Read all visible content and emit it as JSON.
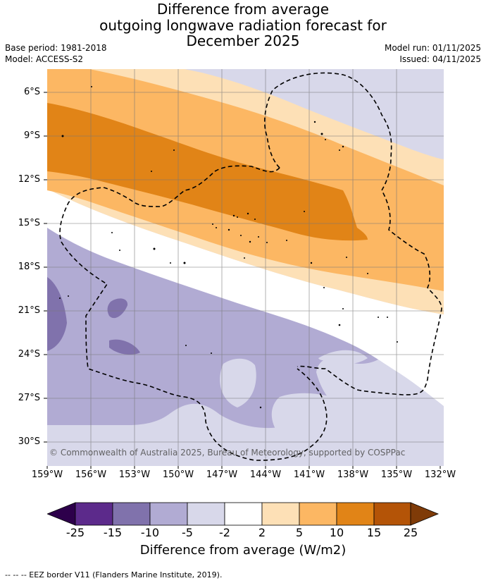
{
  "header": {
    "title_lines": [
      "Difference from average",
      "outgoing longwave radiation forecast for",
      "December 2025"
    ],
    "base_period": "Base period: 1981-2018",
    "model": "Model: ACCESS-S2",
    "model_run": "Model run: 01/11/2025",
    "issued": "Issued: 04/11/2025"
  },
  "map": {
    "copyright": "© Commonwealth of Australia 2025, Bureau of Meteorology, supported by COSPPac",
    "lat_labels": [
      "6°S",
      "9°S",
      "12°S",
      "15°S",
      "18°S",
      "21°S",
      "24°S",
      "27°S",
      "30°S"
    ],
    "lon_labels": [
      "159°W",
      "156°W",
      "153°W",
      "150°W",
      "147°W",
      "144°W",
      "141°W",
      "138°W",
      "135°W",
      "132°W"
    ],
    "colors": {
      "n25_n15": "#5c2a8b",
      "n15_n10": "#8072ac",
      "n10_n5": "#b1abd3",
      "n5_n2": "#d8d8ea",
      "n2_2": "#ffffff",
      "p2_5": "#fde0b6",
      "p5_10": "#fcb763",
      "p10_15": "#e18417",
      "p15_25": "#b45407"
    }
  },
  "legend": {
    "ticks": [
      "-25",
      "-15",
      "-10",
      "-5",
      "-2",
      "2",
      "5",
      "10",
      "15",
      "25"
    ],
    "label": "Difference from average (W/m2)",
    "colors": [
      "#2d004b",
      "#5c2a8b",
      "#8072ac",
      "#b1abd3",
      "#d8d8ea",
      "#ffffff",
      "#fde0b6",
      "#fcb763",
      "#e18417",
      "#b45407",
      "#7f3b08"
    ]
  },
  "footer": {
    "text": "--  --  -- EEZ border V11 (Flanders Marine Institute, 2019)."
  }
}
